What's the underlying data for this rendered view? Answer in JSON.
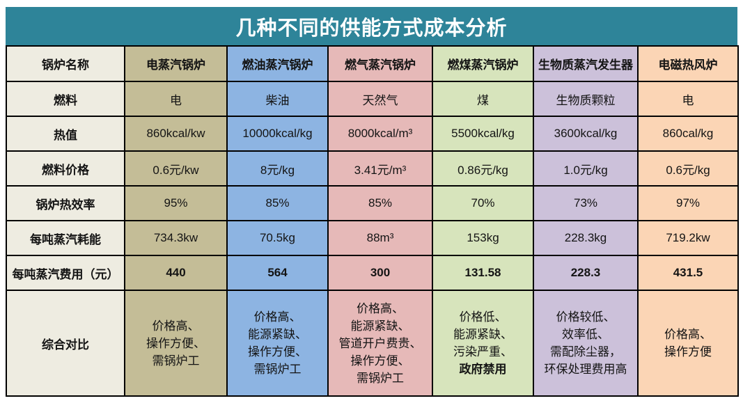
{
  "title": "几种不同的供能方式成本分析",
  "colors": {
    "title_bg": "#2E8499",
    "title_text": "#FFFFFF",
    "border": "#000000",
    "label_col_bg": "#EEECE1",
    "columns": [
      "#C4BD97",
      "#8DB4E2",
      "#E6B9B8",
      "#D7E4BC",
      "#CCC1DA",
      "#FBD5B5"
    ],
    "text": "#141414"
  },
  "table": {
    "header": {
      "label": "锅炉名称",
      "columns": [
        "电蒸汽锅炉",
        "燃油蒸汽锅炉",
        "燃气蒸汽锅炉",
        "燃煤蒸汽锅炉",
        "生物质蒸汽发生器",
        "电磁热风炉"
      ]
    },
    "rows": [
      {
        "label": "燃料",
        "bold_values": false,
        "values": [
          "电",
          "柴油",
          "天然气",
          "煤",
          "生物质颗粒",
          "电"
        ]
      },
      {
        "label": "热值",
        "bold_values": false,
        "values": [
          "860kcal/kw",
          "10000kcal/kg",
          "8000kcal/m³",
          "5500kcal/kg",
          "3600kcal/kg",
          "860cal/kg"
        ]
      },
      {
        "label": "燃料价格",
        "bold_values": false,
        "values": [
          "0.6元/kw",
          "8元/kg",
          "3.41元/m³",
          "0.86元/kg",
          "1.0元/kg",
          "0.6元/kg"
        ]
      },
      {
        "label": "锅炉热效率",
        "bold_values": false,
        "values": [
          "95%",
          "85%",
          "85%",
          "70%",
          "73%",
          "97%"
        ]
      },
      {
        "label": "每吨蒸汽耗能",
        "bold_values": false,
        "values": [
          "734.3kw",
          "70.5kg",
          "88m³",
          "153kg",
          "228.3kg",
          "719.2kw"
        ]
      },
      {
        "label": "每吨蒸汽费用（元）",
        "bold_values": true,
        "values": [
          "440",
          "564",
          "300",
          "131.58",
          "228.3",
          "431.5"
        ]
      },
      {
        "label": "综合对比",
        "bold_values": false,
        "multiline": true,
        "values": [
          [
            {
              "text": "价格高、",
              "bold": false
            },
            {
              "text": "操作方便、",
              "bold": false
            },
            {
              "text": "需锅炉工",
              "bold": false
            }
          ],
          [
            {
              "text": "价格高、",
              "bold": false
            },
            {
              "text": "能源紧缺、",
              "bold": false
            },
            {
              "text": "操作方便、",
              "bold": false
            },
            {
              "text": "需锅炉工",
              "bold": false
            }
          ],
          [
            {
              "text": "价格高、",
              "bold": false
            },
            {
              "text": "能源紧缺、",
              "bold": false
            },
            {
              "text": "管道开户费贵、",
              "bold": false
            },
            {
              "text": "操作方便、",
              "bold": false
            },
            {
              "text": "需锅炉工",
              "bold": false
            }
          ],
          [
            {
              "text": "价格低、",
              "bold": false
            },
            {
              "text": "能源紧缺、",
              "bold": false
            },
            {
              "text": "污染严重、",
              "bold": false
            },
            {
              "text": "政府禁用",
              "bold": true
            }
          ],
          [
            {
              "text": "价格较低、",
              "bold": false
            },
            {
              "text": "效率低、",
              "bold": false
            },
            {
              "text": "需配除尘器，",
              "bold": false
            },
            {
              "text": "环保处理费用高",
              "bold": false
            }
          ],
          [
            {
              "text": "价格高、",
              "bold": false
            },
            {
              "text": "操作方便",
              "bold": false
            }
          ]
        ]
      }
    ]
  },
  "chart_data": {
    "type": "table",
    "title": "几种不同的供能方式成本分析",
    "columns": [
      "锅炉名称",
      "电蒸汽锅炉",
      "燃油蒸汽锅炉",
      "燃气蒸汽锅炉",
      "燃煤蒸汽锅炉",
      "生物质蒸汽发生器",
      "电磁热风炉"
    ],
    "rows": [
      [
        "燃料",
        "电",
        "柴油",
        "天然气",
        "煤",
        "生物质颗粒",
        "电"
      ],
      [
        "热值",
        "860kcal/kw",
        "10000kcal/kg",
        "8000kcal/m³",
        "5500kcal/kg",
        "3600kcal/kg",
        "860cal/kg"
      ],
      [
        "燃料价格",
        "0.6元/kw",
        "8元/kg",
        "3.41元/m³",
        "0.86元/kg",
        "1.0元/kg",
        "0.6元/kg"
      ],
      [
        "锅炉热效率",
        "95%",
        "85%",
        "85%",
        "70%",
        "73%",
        "97%"
      ],
      [
        "每吨蒸汽耗能",
        "734.3kw",
        "70.5kg",
        "88m³",
        "153kg",
        "228.3kg",
        "719.2kw"
      ],
      [
        "每吨蒸汽费用（元）",
        "440",
        "564",
        "300",
        "131.58",
        "228.3",
        "431.5"
      ],
      [
        "综合对比",
        "价格高、操作方便、需锅炉工",
        "价格高、能源紧缺、操作方便、需锅炉工",
        "价格高、能源紧缺、管道开户费贵、操作方便、需锅炉工",
        "价格低、能源紧缺、污染严重、政府禁用",
        "价格较低、效率低、需配除尘器，环保处理费用高",
        "价格高、操作方便"
      ]
    ]
  }
}
